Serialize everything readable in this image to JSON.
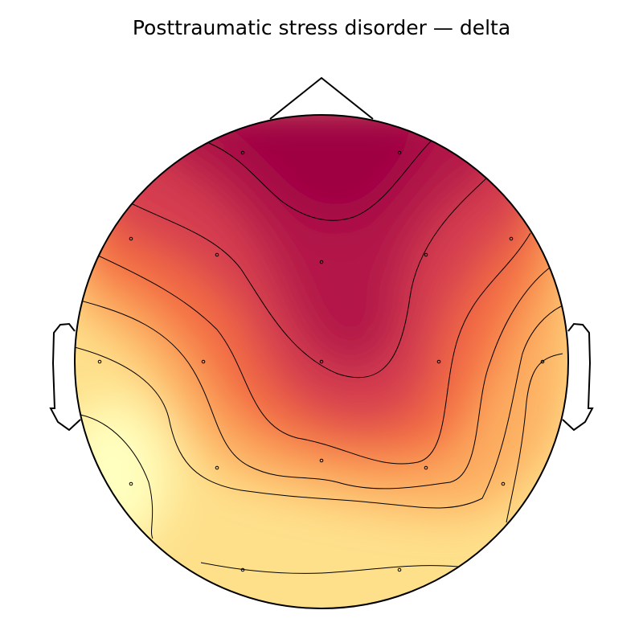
{
  "chart_data": {
    "type": "heatmap",
    "title": "Posttraumatic stress disorder — delta",
    "colormap": [
      "#9e0142",
      "#d53e4f",
      "#f46d43",
      "#fdae61",
      "#fee08b",
      "#ffffbf"
    ],
    "head_outline": true,
    "sensors": [
      {
        "pos": "left frontal-pole",
        "level": 0.95
      },
      {
        "pos": "right frontal-pole",
        "level": 0.92
      },
      {
        "pos": "far left frontal",
        "level": 0.62
      },
      {
        "pos": "left frontal",
        "level": 0.72
      },
      {
        "pos": "frontal midline",
        "level": 0.85
      },
      {
        "pos": "right frontal",
        "level": 0.78
      },
      {
        "pos": "far right frontal",
        "level": 0.58
      },
      {
        "pos": "left temporal",
        "level": 0.18
      },
      {
        "pos": "left central",
        "level": 0.42
      },
      {
        "pos": "central midline",
        "level": 0.7
      },
      {
        "pos": "right central",
        "level": 0.52
      },
      {
        "pos": "right temporal",
        "level": 0.15
      },
      {
        "pos": "left posterior temporal",
        "level": 0.05
      },
      {
        "pos": "left parietal",
        "level": 0.28
      },
      {
        "pos": "parietal midline",
        "level": 0.48
      },
      {
        "pos": "right parietal",
        "level": 0.45
      },
      {
        "pos": "right posterior temporal",
        "level": 0.15
      },
      {
        "pos": "left occipital",
        "level": 0.12
      },
      {
        "pos": "right occipital",
        "level": 0.14
      }
    ]
  }
}
